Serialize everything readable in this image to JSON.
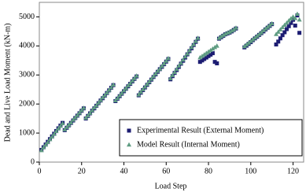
{
  "chart_data": {
    "type": "scatter",
    "x_label": "Load Step",
    "y_label": "Dead and Live Load Moment (kN-m)",
    "x": [
      1,
      2,
      3,
      4,
      5,
      6,
      7,
      8,
      9,
      10,
      11,
      12,
      13,
      14,
      15,
      16,
      17,
      18,
      19,
      20,
      21,
      22,
      23,
      24,
      25,
      26,
      27,
      28,
      29,
      30,
      31,
      32,
      33,
      34,
      35,
      36,
      37,
      38,
      39,
      40,
      41,
      42,
      43,
      44,
      45,
      46,
      47,
      48,
      49,
      50,
      51,
      52,
      53,
      54,
      55,
      56,
      57,
      58,
      59,
      60,
      61,
      62,
      63,
      64,
      65,
      66,
      67,
      68,
      69,
      70,
      71,
      72,
      73,
      74,
      75,
      76,
      77,
      78,
      79,
      80,
      81,
      82,
      83,
      84,
      85,
      86,
      87,
      88,
      89,
      90,
      91,
      92,
      93,
      97,
      98,
      99,
      100,
      101,
      102,
      103,
      104,
      105,
      106,
      107,
      108,
      109,
      110,
      112,
      113,
      114,
      115,
      116,
      117,
      118,
      119,
      120,
      121,
      122,
      123
    ],
    "series": [
      {
        "name": "Experimental Result (External Moment)",
        "color": "#1c1c72",
        "marker": "square",
        "values": [
          420,
          513,
          606,
          699,
          792,
          885,
          978,
          1071,
          1164,
          1257,
          1350,
          1100,
          1183,
          1267,
          1350,
          1433,
          1517,
          1600,
          1683,
          1767,
          1850,
          1500,
          1590,
          1680,
          1770,
          1850,
          1940,
          2030,
          2120,
          2200,
          2290,
          2380,
          2470,
          2560,
          2650,
          2100,
          2185,
          2270,
          2355,
          2440,
          2525,
          2610,
          2695,
          2780,
          2865,
          2950,
          2300,
          2390,
          2480,
          2570,
          2660,
          2750,
          2840,
          2930,
          3020,
          3110,
          3200,
          3280,
          3370,
          3460,
          3550,
          2850,
          2960,
          3070,
          3170,
          3280,
          3390,
          3490,
          3600,
          3710,
          3820,
          3920,
          4030,
          4140,
          4250,
          3450,
          3500,
          3550,
          3600,
          3650,
          3700,
          3750,
          3450,
          3400,
          4250,
          4300,
          4350,
          4400,
          4430,
          4460,
          4500,
          4550,
          4600,
          3950,
          4010,
          4070,
          4130,
          4200,
          4260,
          4320,
          4380,
          4440,
          4500,
          4570,
          4630,
          4690,
          4750,
          4050,
          4150,
          4260,
          4370,
          4470,
          4580,
          4680,
          4790,
          4900,
          4700,
          5050,
          4450
        ]
      },
      {
        "name": "Model Result (Internal Moment)",
        "color": "#5f9c82",
        "marker": "triangle",
        "values": [
          400,
          500,
          590,
          680,
          780,
          870,
          960,
          1060,
          1150,
          1240,
          1330,
          1120,
          1200,
          1280,
          1360,
          1450,
          1530,
          1610,
          1700,
          1780,
          1860,
          1520,
          1600,
          1690,
          1780,
          1870,
          1950,
          2040,
          2130,
          2220,
          2300,
          2390,
          2480,
          2570,
          2660,
          2120,
          2200,
          2290,
          2370,
          2460,
          2540,
          2630,
          2710,
          2800,
          2880,
          2970,
          2320,
          2410,
          2500,
          2590,
          2680,
          2770,
          2860,
          2950,
          3040,
          3130,
          3210,
          3300,
          3390,
          3480,
          3570,
          2880,
          2990,
          3090,
          3200,
          3310,
          3410,
          3520,
          3630,
          3730,
          3840,
          3950,
          4050,
          4160,
          4270,
          3600,
          3650,
          3700,
          3750,
          3800,
          3850,
          3900,
          3950,
          4000,
          4270,
          4320,
          4370,
          4410,
          4450,
          4480,
          4520,
          4560,
          4620,
          3980,
          4040,
          4100,
          4160,
          4220,
          4280,
          4340,
          4400,
          4460,
          4530,
          4590,
          4650,
          4710,
          4770,
          4400,
          4480,
          4560,
          4640,
          4720,
          4790,
          4870,
          4940,
          5000,
          4950,
          5100,
          4900
        ]
      }
    ],
    "xlim": [
      0,
      125
    ],
    "xticks": [
      0,
      20,
      40,
      60,
      80,
      100,
      120
    ],
    "ylim": [
      0,
      5500
    ],
    "yticks": [
      0,
      1000,
      2000,
      3000,
      4000,
      5000
    ],
    "grid": false,
    "legend": "lower right"
  }
}
